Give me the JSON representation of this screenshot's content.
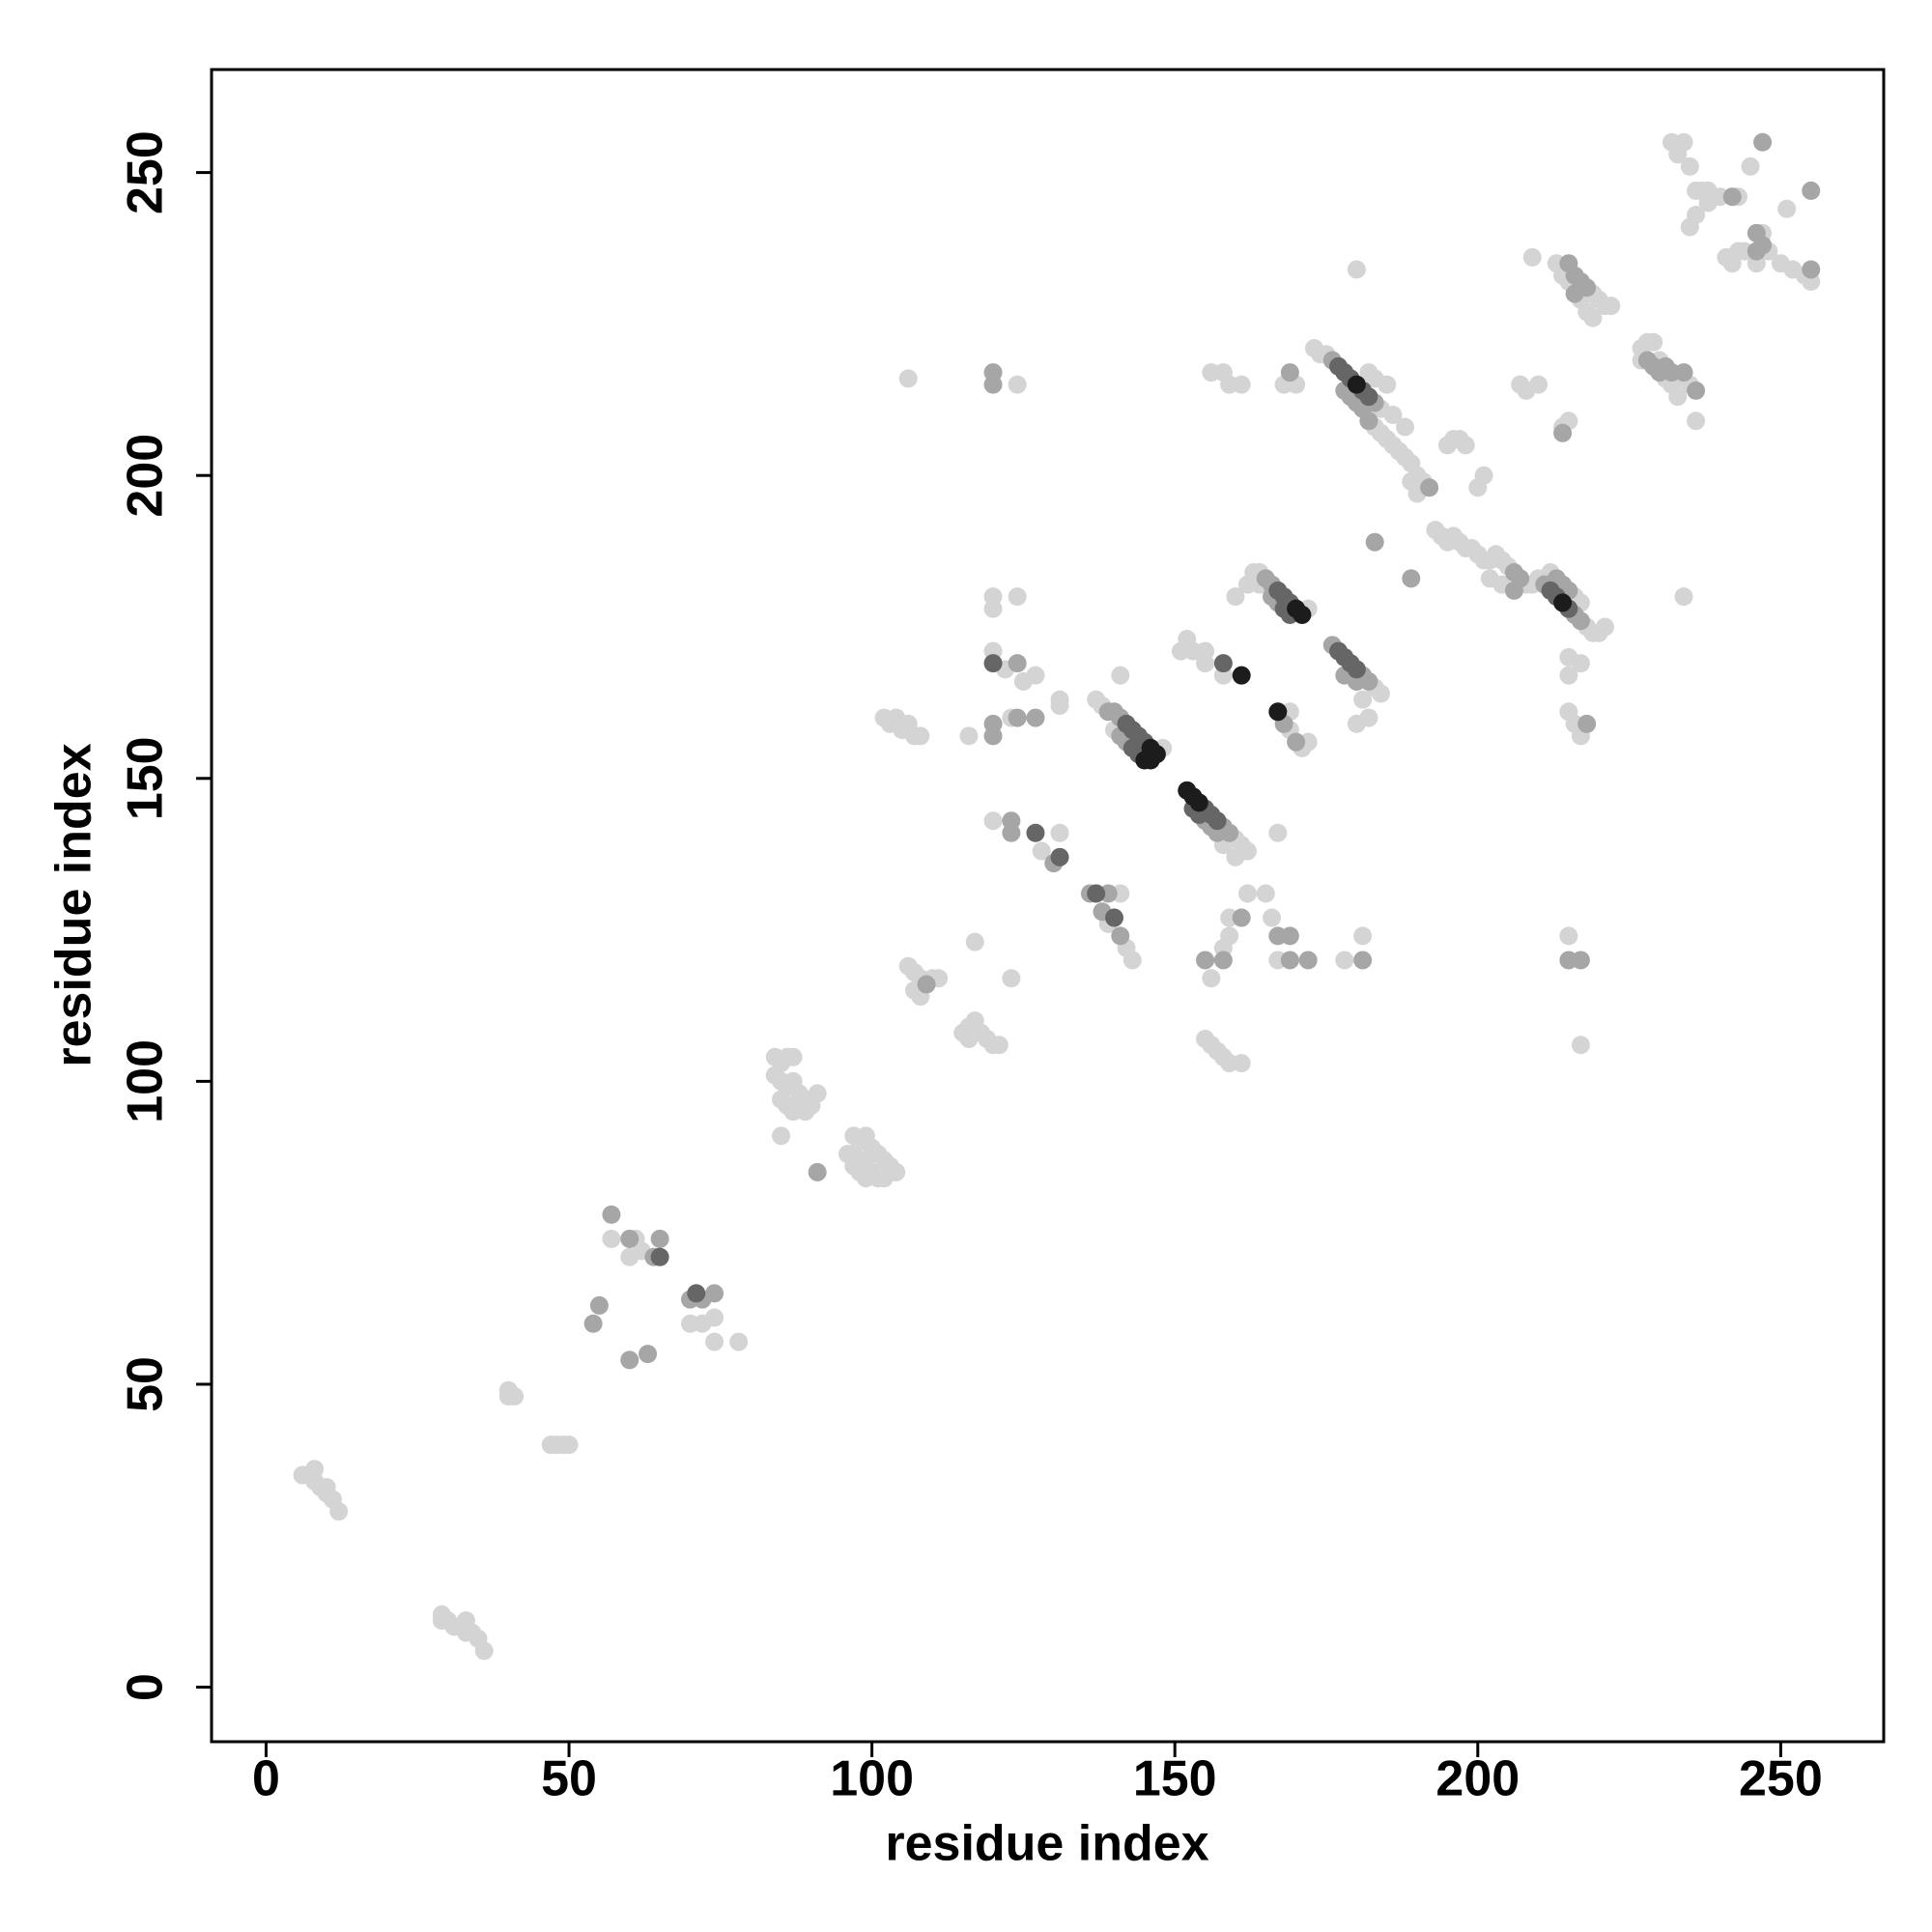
{
  "chart_data": {
    "type": "scatter",
    "xlabel": "residue index",
    "ylabel": "residue index",
    "xlim": [
      -9,
      267
    ],
    "ylim": [
      -9,
      267
    ],
    "xticks": [
      0,
      50,
      100,
      150,
      200,
      250
    ],
    "yticks": [
      0,
      50,
      100,
      150,
      200,
      250
    ],
    "grid": false,
    "series": [
      {
        "color": "#d4d4d4",
        "x": [
          6,
          7,
          8,
          9,
          10,
          11,
          12,
          8,
          10,
          29,
          30,
          31,
          32,
          33,
          34,
          35,
          36,
          29,
          33,
          40,
          41,
          40,
          47,
          48,
          49,
          50,
          57,
          61,
          60,
          62,
          70,
          72,
          74,
          74,
          78,
          84,
          85,
          86,
          87,
          84,
          85,
          86,
          87,
          88,
          89,
          90,
          91,
          85,
          86,
          87,
          88,
          89,
          85,
          97,
          98,
          99,
          100,
          101,
          102,
          103,
          104,
          96,
          97,
          98,
          99,
          100,
          101,
          102,
          97,
          98,
          99,
          106,
          107,
          108,
          110,
          111,
          107,
          108,
          106,
          102,
          103,
          104,
          105,
          106,
          107,
          108,
          115,
          116,
          117,
          118,
          119,
          120,
          121,
          116,
          117,
          123,
          124,
          120,
          120,
          124,
          120,
          122,
          125,
          127,
          123,
          116,
          131,
          131,
          120,
          128,
          131,
          137,
          138,
          148,
          140,
          141,
          141,
          139,
          142,
          143,
          160,
          161,
          162,
          158,
          160,
          167,
          155,
          156,
          157,
          158,
          159,
          161,
          156,
          158,
          159,
          162,
          165,
          159,
          166,
          167,
          178,
          181,
          151,
          152,
          153,
          155,
          155,
          158,
          160,
          162,
          163,
          164,
          164,
          172,
          169,
          169,
          171,
          172,
          183,
          184,
          181,
          180,
          182,
          156,
          158,
          159,
          161,
          168,
          170,
          173,
          174,
          175,
          184,
          183,
          184,
          185,
          186,
          187,
          188,
          189,
          190,
          191,
          182,
          183,
          185,
          186,
          188,
          189,
          190,
          180,
          195,
          196,
          197,
          198,
          200,
          201,
          207,
          208,
          210,
          214,
          215,
          209,
          193,
          194,
          195,
          196,
          197,
          198,
          199,
          200,
          201,
          202,
          203,
          204,
          205,
          208,
          209,
          210,
          218,
          219,
          220,
          221,
          212,
          216,
          217,
          202,
          204,
          215,
          215,
          217,
          215,
          216,
          217,
          215,
          217,
          234,
          213,
          214,
          219,
          220,
          221,
          222,
          215,
          217,
          218,
          219,
          214,
          227,
          228,
          229,
          230,
          233,
          235,
          227,
          231,
          232,
          233,
          236,
          232,
          234,
          233,
          235,
          236,
          237,
          238,
          236,
          235,
          238,
          240,
          243,
          245,
          242,
          241,
          243,
          246,
          247,
          248,
          250,
          252,
          254,
          255,
          251,
          244
        ],
        "values": [
          35,
          35,
          34,
          33,
          32,
          31,
          29,
          36,
          33,
          12,
          11,
          10,
          10,
          9,
          9,
          8,
          6,
          11,
          11,
          49,
          48,
          48,
          40,
          40,
          40,
          40,
          74,
          74,
          71,
          72,
          60,
          60,
          61,
          57,
          57,
          104,
          103,
          104,
          104,
          101,
          100,
          99,
          100,
          98,
          97,
          96,
          98,
          97,
          96,
          95,
          96,
          95,
          91,
          91,
          90,
          91,
          89,
          88,
          87,
          86,
          85,
          88,
          86,
          85,
          84,
          85,
          84,
          84,
          88,
          87,
          87,
          119,
          118,
          117,
          117,
          117,
          115,
          114,
          216,
          160,
          159,
          160,
          158,
          159,
          157,
          157,
          108,
          109,
          110,
          108,
          107,
          106,
          106,
          107,
          123,
          117,
          215,
          180,
          178,
          180,
          171,
          168,
          166,
          167,
          160,
          157,
          163,
          162,
          143,
          138,
          141,
          163,
          162,
          155,
          158,
          167,
          131,
          126,
          122,
          120,
          140,
          139,
          138,
          139,
          137,
          141,
          107,
          106,
          105,
          104,
          103,
          103,
          117,
          122,
          127,
          131,
          131,
          124,
          127,
          120,
          120,
          124,
          171,
          173,
          171,
          171,
          169,
          167,
          180,
          182,
          184,
          184,
          182,
          178,
          161,
          158,
          155,
          156,
          165,
          164,
          163,
          159,
          160,
          217,
          217,
          215,
          215,
          215,
          215,
          221,
          220,
          220,
          211,
          208,
          207,
          206,
          205,
          204,
          203,
          202,
          200,
          199,
          217,
          216,
          215,
          210,
          208,
          199,
          197,
          234,
          205,
          206,
          206,
          205,
          198,
          200,
          215,
          214,
          215,
          208,
          209,
          236,
          191,
          190,
          189,
          190,
          189,
          188,
          188,
          187,
          186,
          186,
          187,
          186,
          185,
          182,
          182,
          183,
          175,
          174,
          174,
          175,
          184,
          180,
          179,
          183,
          182,
          170,
          167,
          169,
          161,
          159,
          157,
          124,
          106,
          180,
          235,
          234,
          230,
          229,
          228,
          228,
          232,
          229,
          227,
          226,
          233,
          221,
          222,
          222,
          219,
          216,
          215,
          219,
          216,
          215,
          213,
          209,
          255,
          255,
          253,
          251,
          247,
          247,
          247,
          243,
          241,
          245,
          246,
          246,
          251,
          235,
          236,
          237,
          235,
          240,
          237,
          235,
          234,
          233,
          232,
          244,
          237
        ]
      },
      {
        "color": "#a6a6a6",
        "x": [
          57,
          60,
          64,
          65,
          55,
          54,
          60,
          63,
          70,
          72,
          74,
          91,
          109,
          120,
          120,
          124,
          120,
          120,
          124,
          127,
          123,
          123,
          130,
          139,
          140,
          141,
          141,
          142,
          136,
          139,
          138,
          141,
          158,
          159,
          155,
          156,
          157,
          155,
          158,
          161,
          167,
          169,
          169,
          172,
          181,
          165,
          166,
          166,
          167,
          168,
          170,
          176,
          181,
          182,
          178,
          180,
          169,
          176,
          183,
          178,
          179,
          180,
          181,
          182,
          192,
          183,
          189,
          206,
          207,
          211,
          216,
          217,
          213,
          214,
          215,
          206,
          214,
          218,
          215,
          217,
          215,
          216,
          217,
          218,
          216,
          231,
          232,
          234,
          236,
          228,
          229,
          230,
          242,
          247,
          246,
          247,
          246,
          255,
          255
        ],
        "values": [
          78,
          74,
          71,
          74,
          63,
          60,
          54,
          55,
          64,
          64,
          65,
          85,
          116,
          217,
          215,
          169,
          159,
          157,
          160,
          160,
          143,
          141,
          136,
          161,
          161,
          160,
          157,
          156,
          131,
          131,
          128,
          124,
          142,
          141,
          143,
          142,
          141,
          120,
          120,
          127,
          124,
          124,
          120,
          120,
          120,
          183,
          182,
          180,
          179,
          159,
          156,
          172,
          167,
          166,
          167,
          166,
          217,
          219,
          212,
          214,
          213,
          212,
          211,
          209,
          198,
          189,
          183,
          184,
          183,
          182,
          177,
          176,
          183,
          182,
          181,
          181,
          207,
          159,
          120,
          120,
          235,
          233,
          232,
          231,
          230,
          218,
          217,
          217,
          214,
          219,
          218,
          217,
          246,
          255,
          237,
          238,
          240,
          234,
          247
        ]
      },
      {
        "color": "#666666",
        "x": [
          65,
          71,
          120,
          127,
          131,
          142,
          143,
          144,
          145,
          143,
          144,
          137,
          140,
          155,
          156,
          157,
          153,
          154,
          158,
          167,
          168,
          169,
          168,
          169,
          177,
          178,
          179,
          180,
          177,
          178,
          179,
          181,
          182,
          212,
          213,
          215
        ],
        "values": [
          71,
          65,
          169,
          141,
          137,
          159,
          158,
          157,
          156,
          155,
          154,
          131,
          127,
          145,
          144,
          143,
          145,
          144,
          169,
          181,
          180,
          179,
          178,
          177,
          171,
          170,
          169,
          168,
          218,
          217,
          216,
          214,
          213,
          181,
          180,
          178
        ]
      },
      {
        "color": "#1c1c1c",
        "x": [
          146,
          147,
          145,
          146,
          152,
          153,
          154,
          161,
          170,
          171,
          167,
          180,
          214
        ],
        "values": [
          155,
          154,
          153,
          153,
          148,
          147,
          146,
          167,
          178,
          177,
          161,
          215,
          179
        ]
      }
    ]
  }
}
